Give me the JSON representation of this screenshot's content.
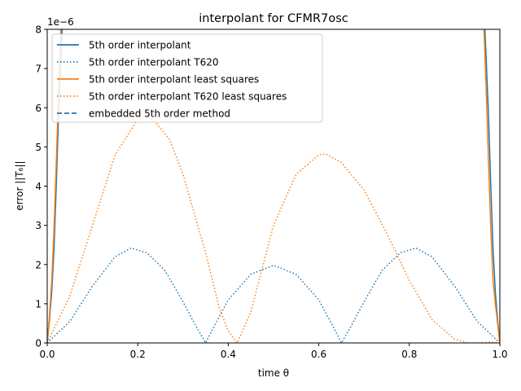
{
  "chart_data": {
    "type": "line",
    "title": "interpolant for CFMR7osc",
    "xlabel": "time θ",
    "ylabel": "error ||T₆||",
    "y_offset_label": "1e−6",
    "xlim": [
      0,
      1
    ],
    "ylim": [
      0,
      8
    ],
    "xticks": [
      0,
      0.2,
      0.4,
      0.6,
      0.8,
      1
    ],
    "xtick_labels": [
      "0.0",
      "0.2",
      "0.4",
      "0.6",
      "0.8",
      "1.0"
    ],
    "yticks": [
      0,
      1,
      2,
      3,
      4,
      5,
      6,
      7,
      8
    ],
    "ytick_labels": [
      "0",
      "1",
      "2",
      "3",
      "4",
      "5",
      "6",
      "7",
      "8"
    ],
    "grid": false,
    "legend_position": "top-left",
    "series": [
      {
        "name": "5th order interpolant",
        "color": "#1f77b4",
        "style": "solid",
        "x": [
          0,
          0.005,
          0.01,
          0.015,
          0.02,
          0.025,
          0.03,
          0.035,
          0.04,
          0.96,
          0.965,
          0.97,
          0.975,
          0.98,
          0.985,
          0.99,
          0.995,
          1.0
        ],
        "y": [
          0,
          0.6,
          1.3,
          2.4,
          4.0,
          5.8,
          7.2,
          8.5,
          10,
          10,
          8.5,
          7.2,
          5.8,
          4.0,
          2.4,
          1.3,
          0.6,
          0
        ]
      },
      {
        "name": "5th order interpolant T620",
        "color": "#1f77b4",
        "style": "dotted",
        "x": [
          0,
          0.05,
          0.1,
          0.15,
          0.185,
          0.22,
          0.26,
          0.3,
          0.33,
          0.35,
          0.37,
          0.4,
          0.45,
          0.5,
          0.55,
          0.6,
          0.63,
          0.65,
          0.67,
          0.7,
          0.74,
          0.78,
          0.815,
          0.85,
          0.9,
          0.95,
          1.0
        ],
        "y": [
          0,
          0.55,
          1.45,
          2.2,
          2.42,
          2.3,
          1.85,
          1.05,
          0.4,
          0,
          0.45,
          1.1,
          1.75,
          1.98,
          1.75,
          1.1,
          0.45,
          0,
          0.4,
          1.05,
          1.85,
          2.3,
          2.42,
          2.2,
          1.45,
          0.55,
          0
        ]
      },
      {
        "name": "5th order interpolant least squares",
        "color": "#ff7f0e",
        "style": "solid",
        "x": [
          0,
          0.005,
          0.01,
          0.015,
          0.02,
          0.025,
          0.03,
          0.035,
          0.96,
          0.965,
          0.97,
          0.975,
          0.98,
          0.985,
          0.99,
          0.995,
          1.0
        ],
        "y": [
          0,
          0.7,
          1.6,
          2.9,
          4.6,
          6.4,
          8.0,
          10,
          10,
          8.0,
          6.4,
          4.6,
          2.9,
          1.6,
          1.0,
          0.5,
          0
        ]
      },
      {
        "name": "5th order interpolant T620 least squares",
        "color": "#ff7f0e",
        "style": "dotted",
        "x": [
          0,
          0.05,
          0.1,
          0.15,
          0.2,
          0.23,
          0.27,
          0.3,
          0.35,
          0.38,
          0.4,
          0.42,
          0.45,
          0.5,
          0.55,
          0.6,
          0.615,
          0.65,
          0.7,
          0.75,
          0.8,
          0.85,
          0.9,
          0.93,
          0.95,
          0.98,
          1.0
        ],
        "y": [
          0,
          1.2,
          3.0,
          4.8,
          5.7,
          5.75,
          5.2,
          4.3,
          2.3,
          0.9,
          0.3,
          0,
          0.8,
          3.0,
          4.3,
          4.8,
          4.82,
          4.6,
          3.9,
          2.8,
          1.6,
          0.6,
          0.1,
          0,
          0,
          0.02,
          0
        ]
      },
      {
        "name": "embedded 5th order method",
        "color": "#1f77b4",
        "style": "dashed",
        "x": [],
        "y": []
      }
    ]
  }
}
